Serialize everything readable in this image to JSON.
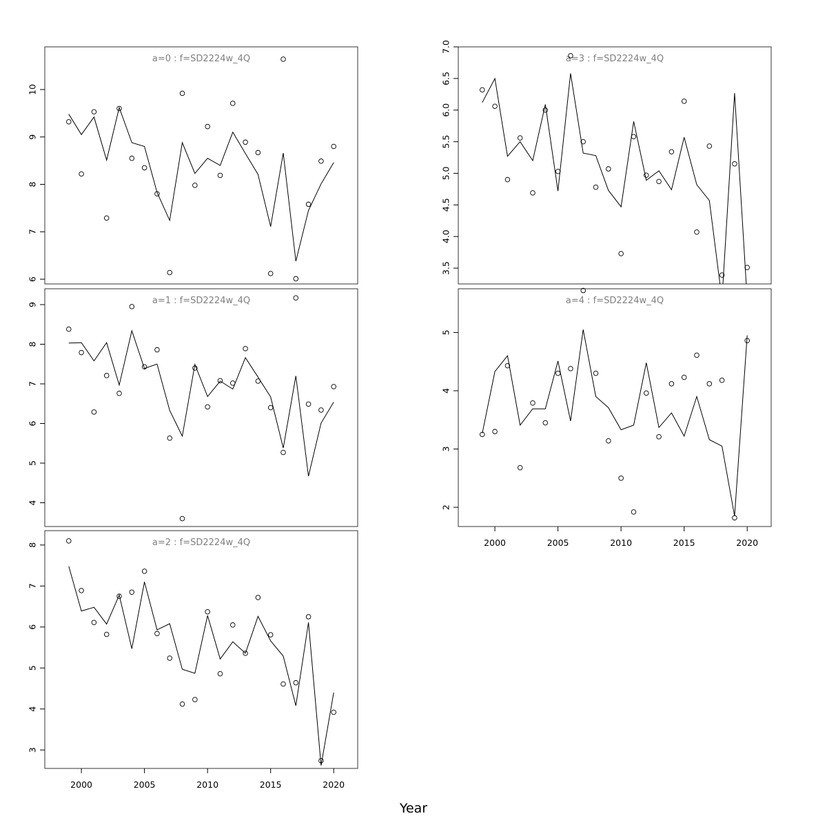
{
  "figure": {
    "xlabel": "Year"
  },
  "chart_data": [
    {
      "type": "line",
      "title": "a=0 : f=SD2224w_4Q",
      "x": [
        1999,
        2000,
        2001,
        2002,
        2003,
        2004,
        2005,
        2006,
        2007,
        2008,
        2009,
        2010,
        2011,
        2012,
        2013,
        2014,
        2015,
        2016,
        2017,
        2018,
        2019,
        2020
      ],
      "series": [
        {
          "values": [
            9.48,
            9.05,
            9.42,
            8.51,
            9.62,
            8.88,
            8.8,
            7.83,
            7.24,
            8.88,
            8.23,
            8.55,
            8.4,
            9.1,
            8.65,
            8.21,
            7.11,
            8.66,
            6.38,
            7.45,
            8.01,
            8.46
          ]
        },
        {
          "values": [
            9.32,
            8.22,
            9.53,
            7.29,
            9.6,
            8.55,
            8.35,
            7.8,
            6.14,
            9.92,
            7.98,
            9.22,
            8.19,
            9.71,
            8.89,
            8.67,
            6.12,
            10.64,
            6.01,
            7.58,
            8.49,
            8.8
          ]
        }
      ],
      "xlim": [
        1997.1,
        2021.9
      ],
      "ylim": [
        5.9,
        10.9
      ],
      "yticks": [
        6,
        7,
        8,
        9,
        10
      ],
      "xticks": []
    },
    {
      "type": "line",
      "title": "a=1 : f=SD2224w_4Q",
      "x": [
        1999,
        2000,
        2001,
        2002,
        2003,
        2004,
        2005,
        2006,
        2007,
        2008,
        2009,
        2010,
        2011,
        2012,
        2013,
        2014,
        2015,
        2016,
        2017,
        2018,
        2019,
        2020
      ],
      "series": [
        {
          "values": [
            8.03,
            8.04,
            7.58,
            8.04,
            6.97,
            8.34,
            7.39,
            7.5,
            6.33,
            5.68,
            7.49,
            6.68,
            7.07,
            6.87,
            7.66,
            7.17,
            6.67,
            5.38,
            7.2,
            4.67,
            6.01,
            6.54
          ]
        },
        {
          "values": [
            8.38,
            7.79,
            6.29,
            7.21,
            6.76,
            8.95,
            7.43,
            7.86,
            5.63,
            3.6,
            7.4,
            6.42,
            7.08,
            7.02,
            7.89,
            7.07,
            6.4,
            5.27,
            9.17,
            6.49,
            6.34,
            6.93
          ]
        }
      ],
      "xlim": [
        1997.1,
        2021.9
      ],
      "ylim": [
        3.4,
        9.4
      ],
      "yticks": [
        4,
        5,
        6,
        7,
        8,
        9
      ],
      "xticks": []
    },
    {
      "type": "line",
      "title": "a=2 : f=SD2224w_4Q",
      "x": [
        1999,
        2000,
        2001,
        2002,
        2003,
        2004,
        2005,
        2006,
        2007,
        2008,
        2009,
        2010,
        2011,
        2012,
        2013,
        2014,
        2015,
        2016,
        2017,
        2018,
        2019,
        2020
      ],
      "series": [
        {
          "values": [
            7.48,
            6.39,
            6.48,
            6.07,
            6.78,
            5.47,
            7.1,
            5.93,
            6.08,
            4.97,
            4.87,
            6.28,
            5.22,
            5.64,
            5.36,
            6.26,
            5.66,
            5.29,
            4.08,
            6.11,
            2.62,
            4.4
          ]
        },
        {
          "values": [
            8.1,
            6.89,
            6.11,
            5.82,
            6.75,
            6.85,
            7.36,
            5.84,
            5.24,
            4.12,
            4.23,
            6.37,
            4.86,
            6.05,
            5.36,
            6.72,
            5.81,
            4.61,
            4.64,
            6.25,
            2.74,
            3.92
          ]
        }
      ],
      "xlim": [
        1997.1,
        2021.9
      ],
      "ylim": [
        2.55,
        8.35
      ],
      "yticks": [
        3,
        4,
        5,
        6,
        7,
        8
      ],
      "xticks": [
        2000,
        2005,
        2010,
        2015,
        2020
      ]
    },
    {
      "type": "line",
      "title": "a=3 : f=SD2224w_4Q",
      "x": [
        1999,
        2000,
        2001,
        2002,
        2003,
        2004,
        2005,
        2006,
        2007,
        2008,
        2009,
        2010,
        2011,
        2012,
        2013,
        2014,
        2015,
        2016,
        2017,
        2018,
        2019,
        2020
      ],
      "series": [
        {
          "values": [
            6.12,
            6.5,
            5.27,
            5.5,
            5.2,
            6.09,
            4.72,
            6.58,
            5.32,
            5.28,
            4.73,
            4.47,
            5.82,
            4.89,
            5.04,
            4.74,
            5.57,
            4.82,
            4.57,
            3.0,
            6.27,
            3.0
          ]
        },
        {
          "values": [
            6.32,
            6.06,
            4.9,
            5.56,
            4.69,
            6.0,
            5.03,
            6.86,
            5.5,
            4.78,
            5.07,
            3.73,
            5.58,
            4.97,
            4.87,
            5.34,
            6.14,
            4.07,
            5.43,
            3.39,
            5.15,
            3.51
          ]
        }
      ],
      "xlim": [
        1997.1,
        2021.9
      ],
      "ylim": [
        3.25,
        7.0
      ],
      "yticks": [
        3.5,
        4.0,
        4.5,
        5.0,
        5.5,
        6.0,
        6.5,
        7.0
      ],
      "xticks": []
    },
    {
      "type": "line",
      "title": "a=4 : f=SD2224w_4Q",
      "x": [
        1999,
        2000,
        2001,
        2002,
        2003,
        2004,
        2005,
        2006,
        2007,
        2008,
        2009,
        2010,
        2011,
        2012,
        2013,
        2014,
        2015,
        2016,
        2017,
        2018,
        2019,
        2020
      ],
      "series": [
        {
          "values": [
            3.27,
            4.33,
            4.6,
            3.41,
            3.69,
            3.69,
            4.51,
            3.48,
            5.05,
            3.9,
            3.71,
            3.33,
            3.41,
            4.48,
            3.37,
            3.62,
            3.22,
            3.9,
            3.16,
            3.05,
            1.85,
            4.95
          ]
        },
        {
          "values": [
            3.25,
            3.3,
            4.43,
            2.68,
            3.79,
            3.45,
            4.3,
            4.38,
            5.72,
            4.3,
            3.14,
            2.5,
            1.92,
            3.96,
            3.21,
            4.12,
            4.23,
            4.61,
            4.12,
            4.18,
            1.82,
            4.86
          ]
        }
      ],
      "xlim": [
        1997.1,
        2021.9
      ],
      "ylim": [
        1.67,
        5.75
      ],
      "yticks": [
        2,
        3,
        4,
        5
      ],
      "xticks": [
        2000,
        2005,
        2010,
        2015,
        2020
      ]
    }
  ]
}
